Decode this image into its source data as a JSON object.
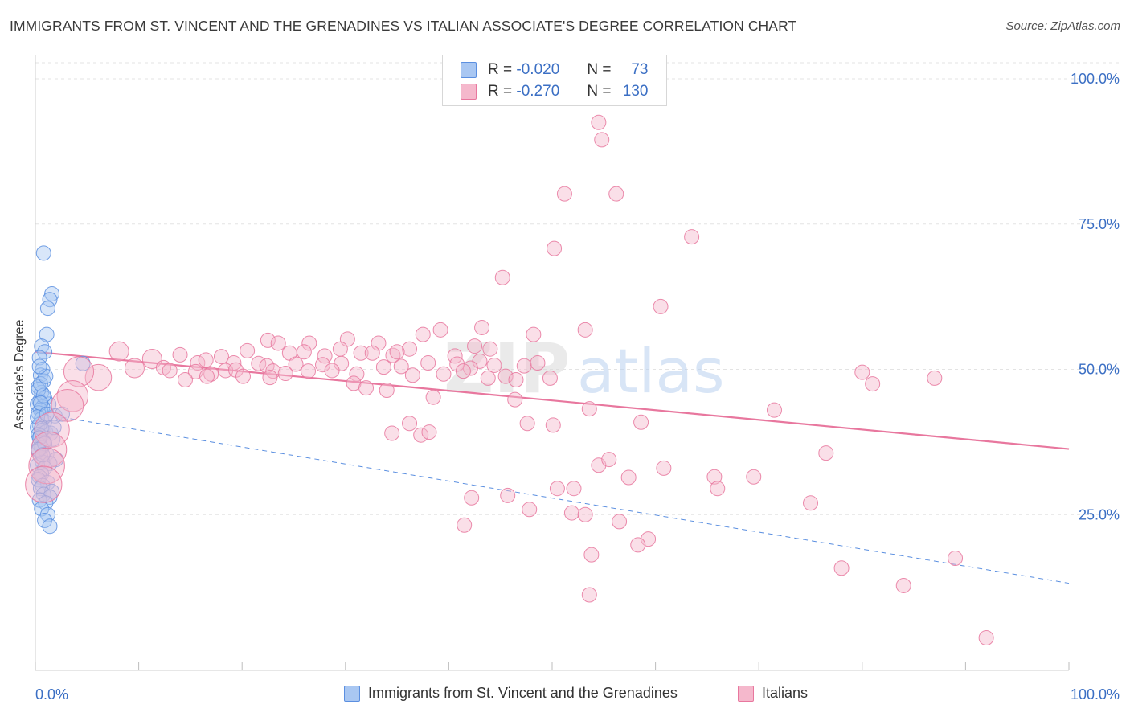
{
  "title": "IMMIGRANTS FROM ST. VINCENT AND THE GRENADINES VS ITALIAN ASSOCIATE'S DEGREE CORRELATION CHART",
  "source": "Source: ZipAtlas.com",
  "watermark": {
    "zip": "ZIP",
    "atlas": "atlas"
  },
  "legend_top": {
    "rows": [
      {
        "r_label": "R =",
        "r_value": "-0.020",
        "n_label": "N =",
        "n_value": "73"
      },
      {
        "r_label": "R =",
        "r_value": "-0.270",
        "n_label": "N =",
        "n_value": "130"
      }
    ]
  },
  "chart_data": {
    "type": "scatter",
    "title": "IMMIGRANTS FROM ST. VINCENT AND THE GRENADINES VS ITALIAN ASSOCIATE'S DEGREE CORRELATION CHART",
    "xlabel": "",
    "ylabel": "Associate's Degree",
    "xlim": [
      0,
      100
    ],
    "ylim": [
      0,
      100
    ],
    "x_tick_labels": [
      "0.0%",
      "100.0%"
    ],
    "y_tick_labels": [
      "25.0%",
      "50.0%",
      "75.0%",
      "100.0%"
    ],
    "y_ticks": [
      25,
      50,
      75,
      100
    ],
    "grid": "horizontal dashed",
    "legend_placement": "bottom",
    "series": [
      {
        "name": "Immigrants from St. Vincent and the Grenadines",
        "color": "#5b8fe0",
        "fill": "#a9c7f2",
        "trend": {
          "x": [
            0,
            100
          ],
          "y": [
            42.5,
            13.2
          ],
          "style": "dashed"
        },
        "points": [
          [
            0.8,
            70
          ],
          [
            1.6,
            63
          ],
          [
            1.4,
            62
          ],
          [
            1.2,
            60.5
          ],
          [
            1.1,
            56
          ],
          [
            0.6,
            54
          ],
          [
            0.9,
            53
          ],
          [
            0.4,
            52
          ],
          [
            4.6,
            51
          ],
          [
            0.7,
            50
          ],
          [
            0.5,
            49
          ],
          [
            0.8,
            48
          ],
          [
            0.3,
            47
          ],
          [
            0.6,
            46
          ],
          [
            0.9,
            45
          ],
          [
            0.4,
            44.5
          ],
          [
            0.2,
            44
          ],
          [
            1.3,
            44
          ],
          [
            0.7,
            43.5
          ],
          [
            0.5,
            43
          ],
          [
            0.3,
            42.5
          ],
          [
            1.9,
            42
          ],
          [
            0.6,
            41.5
          ],
          [
            0.9,
            41
          ],
          [
            0.4,
            40.5
          ],
          [
            0.2,
            40
          ],
          [
            0.7,
            39.5
          ],
          [
            1.0,
            39.2
          ],
          [
            1.5,
            39
          ],
          [
            0.3,
            38.8
          ],
          [
            0.5,
            38.5
          ],
          [
            1.7,
            38
          ],
          [
            0.8,
            37.5
          ],
          [
            0.4,
            37
          ],
          [
            0.6,
            36.5
          ],
          [
            0.3,
            36
          ],
          [
            1.1,
            35.5
          ],
          [
            0.5,
            35
          ],
          [
            2.0,
            34.5
          ],
          [
            0.7,
            34
          ],
          [
            1.4,
            33.8
          ],
          [
            0.2,
            33.5
          ],
          [
            0.9,
            33
          ],
          [
            0.6,
            32
          ],
          [
            0.4,
            31.5
          ],
          [
            0.3,
            31
          ],
          [
            1.2,
            30.5
          ],
          [
            0.7,
            30
          ],
          [
            0.5,
            29.5
          ],
          [
            1.6,
            29
          ],
          [
            0.8,
            28.5
          ],
          [
            1.4,
            28
          ],
          [
            0.4,
            27.5
          ],
          [
            1.0,
            27
          ],
          [
            0.6,
            26
          ],
          [
            1.2,
            25
          ],
          [
            0.9,
            24
          ],
          [
            1.4,
            23
          ],
          [
            0.3,
            46.5
          ],
          [
            0.8,
            45.5
          ],
          [
            0.5,
            44.2
          ],
          [
            0.2,
            41.8
          ],
          [
            1.1,
            42.3
          ],
          [
            0.6,
            39.8
          ],
          [
            0.4,
            38.2
          ],
          [
            0.9,
            37.2
          ],
          [
            0.3,
            36.2
          ],
          [
            0.7,
            35.3
          ],
          [
            2.6,
            42.3
          ],
          [
            1.8,
            40
          ],
          [
            0.5,
            47.5
          ],
          [
            1.0,
            48.8
          ],
          [
            0.4,
            50.5
          ]
        ]
      },
      {
        "name": "Italians",
        "color": "#e8779e",
        "fill": "#f5b8cc",
        "trend": {
          "x": [
            0,
            100
          ],
          "y": [
            53,
            36.3
          ],
          "style": "solid"
        },
        "points": [
          [
            54.5,
            92.5
          ],
          [
            54.8,
            89.5
          ],
          [
            51.2,
            80.2
          ],
          [
            56.2,
            80.2
          ],
          [
            63.5,
            72.8
          ],
          [
            50.2,
            70.8
          ],
          [
            45.2,
            65.8
          ],
          [
            60.5,
            60.8
          ],
          [
            53.2,
            56.8
          ],
          [
            43.2,
            57.2
          ],
          [
            48.2,
            56
          ],
          [
            39.2,
            56.8
          ],
          [
            37.5,
            56
          ],
          [
            30.2,
            55.2
          ],
          [
            22.5,
            55
          ],
          [
            23.5,
            54.5
          ],
          [
            26.5,
            54.5
          ],
          [
            33.2,
            54.5
          ],
          [
            42.5,
            54
          ],
          [
            29.5,
            53.5
          ],
          [
            36.2,
            53.5
          ],
          [
            26,
            53
          ],
          [
            31.5,
            52.8
          ],
          [
            8.1,
            53.1
          ],
          [
            14,
            52.5
          ],
          [
            18,
            52.2
          ],
          [
            20.5,
            53.2
          ],
          [
            24.6,
            52.8
          ],
          [
            28,
            52.3
          ],
          [
            32.6,
            52.8
          ],
          [
            34.6,
            52.4
          ],
          [
            40.6,
            52.3
          ],
          [
            43,
            51.4
          ],
          [
            11.3,
            51.8
          ],
          [
            15.7,
            51.1
          ],
          [
            16.5,
            51.6
          ],
          [
            19.2,
            51.1
          ],
          [
            21.6,
            51
          ],
          [
            22.4,
            50.6
          ],
          [
            25.2,
            50.9
          ],
          [
            27.8,
            50.8
          ],
          [
            29.6,
            51
          ],
          [
            33.7,
            50.4
          ],
          [
            35.4,
            50.5
          ],
          [
            38,
            51.1
          ],
          [
            40.8,
            50.9
          ],
          [
            42.1,
            50.2
          ],
          [
            44.4,
            50.7
          ],
          [
            47.3,
            50.6
          ],
          [
            48.6,
            51.1
          ],
          [
            9.6,
            50.2
          ],
          [
            12.4,
            50.3
          ],
          [
            13,
            49.8
          ],
          [
            15.5,
            49.6
          ],
          [
            17,
            49.2
          ],
          [
            18.4,
            49.8
          ],
          [
            19.4,
            49.9
          ],
          [
            23,
            49.7
          ],
          [
            24.2,
            49.3
          ],
          [
            26.4,
            49.7
          ],
          [
            28.7,
            49.8
          ],
          [
            31.1,
            49.2
          ],
          [
            36.5,
            49
          ],
          [
            39.5,
            49.2
          ],
          [
            41.4,
            49.7
          ],
          [
            43.8,
            48.5
          ],
          [
            45.5,
            48.8
          ],
          [
            46.5,
            48.2
          ],
          [
            49.8,
            48.5
          ],
          [
            14.5,
            48.2
          ],
          [
            16.6,
            48.8
          ],
          [
            20.1,
            48.8
          ],
          [
            22.7,
            48.6
          ],
          [
            30.8,
            47.6
          ],
          [
            32,
            46.8
          ],
          [
            34,
            46.4
          ],
          [
            38.5,
            45.2
          ],
          [
            46.4,
            44.8
          ],
          [
            6.1,
            48.6
          ],
          [
            4.2,
            49.6
          ],
          [
            3.6,
            45.4
          ],
          [
            3.1,
            43.8
          ],
          [
            1.6,
            39.6
          ],
          [
            1.3,
            36.2
          ],
          [
            1.1,
            33.4
          ],
          [
            0.8,
            30.2
          ],
          [
            36.2,
            40.7
          ],
          [
            37.3,
            38.7
          ],
          [
            47.6,
            40.7
          ],
          [
            50.1,
            40.4
          ],
          [
            53.6,
            43.2
          ],
          [
            54.5,
            33.5
          ],
          [
            55.5,
            34.5
          ],
          [
            60.8,
            33
          ],
          [
            65.7,
            31.5
          ],
          [
            57.4,
            31.4
          ],
          [
            50.5,
            29.5
          ],
          [
            52.1,
            29.5
          ],
          [
            42.2,
            27.9
          ],
          [
            45.7,
            28.3
          ],
          [
            47.8,
            25.9
          ],
          [
            51.9,
            25.3
          ],
          [
            53.2,
            25
          ],
          [
            56.5,
            23.8
          ],
          [
            59.3,
            20.8
          ],
          [
            58.3,
            19.8
          ],
          [
            53.8,
            18.1
          ],
          [
            76.5,
            35.6
          ],
          [
            75,
            27
          ],
          [
            71.5,
            43
          ],
          [
            80,
            49.5
          ],
          [
            81,
            47.5
          ],
          [
            87,
            48.5
          ],
          [
            69.5,
            31.5
          ],
          [
            66,
            29.5
          ],
          [
            78,
            15.8
          ],
          [
            84,
            12.8
          ],
          [
            89,
            17.5
          ],
          [
            92,
            3.8
          ],
          [
            53.6,
            11.2
          ],
          [
            41.5,
            23.2
          ],
          [
            38.1,
            39.2
          ],
          [
            34.5,
            39
          ],
          [
            58.6,
            40.9
          ],
          [
            35,
            53
          ],
          [
            44,
            53.5
          ]
        ]
      }
    ]
  }
}
